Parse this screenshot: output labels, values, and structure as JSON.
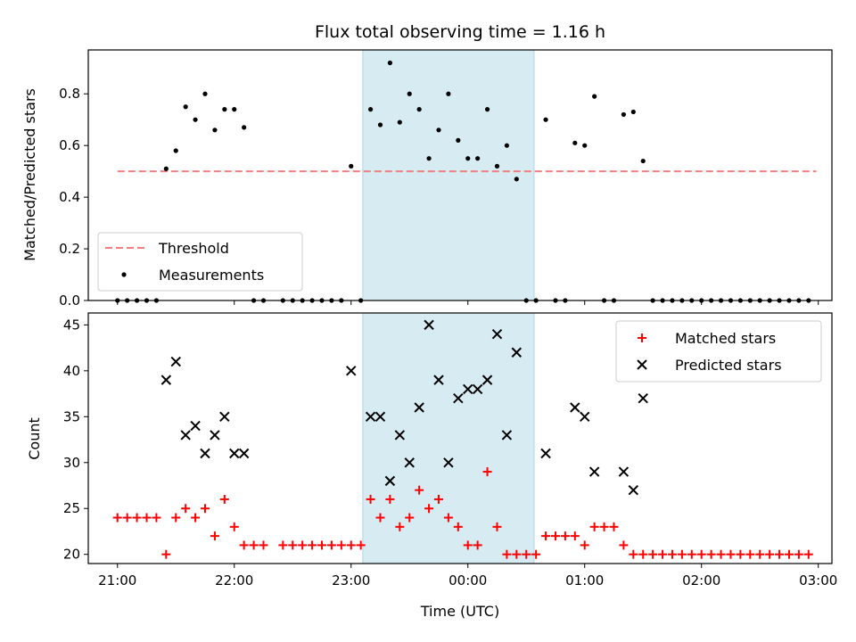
{
  "chart_data": [
    {
      "type": "scatter",
      "title": "Flux total observing time = 1.16 h",
      "ylabel": "Matched/Predicted stars",
      "xlim": [
        "20:45",
        "03:07"
      ],
      "ylim": [
        0,
        0.97
      ],
      "x_tick_labels": [],
      "y_tick_labels": [
        "0.0",
        "0.2",
        "0.4",
        "0.6",
        "0.8"
      ],
      "highlight_band": {
        "x_start": "23:06",
        "x_end": "00:34",
        "color": "#add8e6"
      },
      "legend_position": "lower-left",
      "series": [
        {
          "name": "Threshold",
          "kind": "hline",
          "y": 0.5,
          "x_range": [
            "21:00",
            "02:59"
          ],
          "color": "#f08080",
          "style": "dashed"
        },
        {
          "name": "Measurements",
          "kind": "points",
          "color": "#000000",
          "points": [
            [
              "21:00",
              0
            ],
            [
              "21:05",
              0
            ],
            [
              "21:10",
              0
            ],
            [
              "21:15",
              0
            ],
            [
              "21:20",
              0
            ],
            [
              "21:25",
              0.51
            ],
            [
              "21:30",
              0.58
            ],
            [
              "21:35",
              0.75
            ],
            [
              "21:40",
              0.7
            ],
            [
              "21:45",
              0.8
            ],
            [
              "21:50",
              0.66
            ],
            [
              "21:55",
              0.74
            ],
            [
              "22:00",
              0.74
            ],
            [
              "22:05",
              0.67
            ],
            [
              "22:10",
              0
            ],
            [
              "22:15",
              0
            ],
            [
              "22:25",
              0
            ],
            [
              "22:30",
              0
            ],
            [
              "22:35",
              0
            ],
            [
              "22:40",
              0
            ],
            [
              "22:45",
              0
            ],
            [
              "22:50",
              0
            ],
            [
              "22:55",
              0
            ],
            [
              "23:00",
              0.52
            ],
            [
              "23:05",
              0
            ],
            [
              "23:10",
              0.74
            ],
            [
              "23:15",
              0.68
            ],
            [
              "23:20",
              0.92
            ],
            [
              "23:25",
              0.69
            ],
            [
              "23:30",
              0.8
            ],
            [
              "23:35",
              0.74
            ],
            [
              "23:40",
              0.55
            ],
            [
              "23:45",
              0.66
            ],
            [
              "23:50",
              0.8
            ],
            [
              "23:55",
              0.62
            ],
            [
              "00:00",
              0.55
            ],
            [
              "00:05",
              0.55
            ],
            [
              "00:10",
              0.74
            ],
            [
              "00:15",
              0.52
            ],
            [
              "00:20",
              0.6
            ],
            [
              "00:25",
              0.47
            ],
            [
              "00:30",
              0
            ],
            [
              "00:35",
              0
            ],
            [
              "00:40",
              0.7
            ],
            [
              "00:45",
              0
            ],
            [
              "00:50",
              0
            ],
            [
              "00:55",
              0.61
            ],
            [
              "01:00",
              0.6
            ],
            [
              "01:05",
              0.79
            ],
            [
              "01:10",
              0
            ],
            [
              "01:15",
              0
            ],
            [
              "01:20",
              0.72
            ],
            [
              "01:25",
              0.73
            ],
            [
              "01:30",
              0.54
            ],
            [
              "01:35",
              0
            ],
            [
              "01:40",
              0
            ],
            [
              "01:45",
              0
            ],
            [
              "01:50",
              0
            ],
            [
              "01:55",
              0
            ],
            [
              "02:00",
              0
            ],
            [
              "02:05",
              0
            ],
            [
              "02:10",
              0
            ],
            [
              "02:15",
              0
            ],
            [
              "02:20",
              0
            ],
            [
              "02:25",
              0
            ],
            [
              "02:30",
              0
            ],
            [
              "02:35",
              0
            ],
            [
              "02:40",
              0
            ],
            [
              "02:45",
              0
            ],
            [
              "02:50",
              0
            ],
            [
              "02:55",
              0
            ]
          ]
        }
      ]
    },
    {
      "type": "scatter",
      "xlabel": "Time (UTC)",
      "ylabel": "Count",
      "xlim": [
        "20:45",
        "03:07"
      ],
      "ylim": [
        19,
        46.3
      ],
      "x_tick_labels": [
        "21:00",
        "22:00",
        "23:00",
        "00:00",
        "01:00",
        "02:00",
        "03:00"
      ],
      "y_tick_labels": [
        "20",
        "25",
        "30",
        "35",
        "40",
        "45"
      ],
      "highlight_band": {
        "x_start": "23:06",
        "x_end": "00:34",
        "color": "#add8e6"
      },
      "legend_position": "top-right",
      "series": [
        {
          "name": "Matched stars",
          "marker": "plus",
          "color": "#ff0000",
          "points": [
            [
              "21:00",
              24
            ],
            [
              "21:05",
              24
            ],
            [
              "21:10",
              24
            ],
            [
              "21:15",
              24
            ],
            [
              "21:20",
              24
            ],
            [
              "21:25",
              20
            ],
            [
              "21:30",
              24
            ],
            [
              "21:35",
              25
            ],
            [
              "21:40",
              24
            ],
            [
              "21:45",
              25
            ],
            [
              "21:50",
              22
            ],
            [
              "21:55",
              26
            ],
            [
              "22:00",
              23
            ],
            [
              "22:05",
              21
            ],
            [
              "22:10",
              21
            ],
            [
              "22:15",
              21
            ],
            [
              "22:25",
              21
            ],
            [
              "22:30",
              21
            ],
            [
              "22:35",
              21
            ],
            [
              "22:40",
              21
            ],
            [
              "22:45",
              21
            ],
            [
              "22:50",
              21
            ],
            [
              "22:55",
              21
            ],
            [
              "23:00",
              21
            ],
            [
              "23:05",
              21
            ],
            [
              "23:10",
              26
            ],
            [
              "23:15",
              24
            ],
            [
              "23:20",
              26
            ],
            [
              "23:25",
              23
            ],
            [
              "23:30",
              24
            ],
            [
              "23:35",
              27
            ],
            [
              "23:40",
              25
            ],
            [
              "23:45",
              26
            ],
            [
              "23:50",
              24
            ],
            [
              "23:55",
              23
            ],
            [
              "00:00",
              21
            ],
            [
              "00:05",
              21
            ],
            [
              "00:10",
              29
            ],
            [
              "00:15",
              23
            ],
            [
              "00:20",
              20
            ],
            [
              "00:25",
              20
            ],
            [
              "00:30",
              20
            ],
            [
              "00:35",
              20
            ],
            [
              "00:40",
              22
            ],
            [
              "00:45",
              22
            ],
            [
              "00:50",
              22
            ],
            [
              "00:55",
              22
            ],
            [
              "01:00",
              21
            ],
            [
              "01:05",
              23
            ],
            [
              "01:10",
              23
            ],
            [
              "01:15",
              23
            ],
            [
              "01:20",
              21
            ],
            [
              "01:25",
              20
            ],
            [
              "01:30",
              20
            ],
            [
              "01:35",
              20
            ],
            [
              "01:40",
              20
            ],
            [
              "01:45",
              20
            ],
            [
              "01:50",
              20
            ],
            [
              "01:55",
              20
            ],
            [
              "02:00",
              20
            ],
            [
              "02:05",
              20
            ],
            [
              "02:10",
              20
            ],
            [
              "02:15",
              20
            ],
            [
              "02:20",
              20
            ],
            [
              "02:25",
              20
            ],
            [
              "02:30",
              20
            ],
            [
              "02:35",
              20
            ],
            [
              "02:40",
              20
            ],
            [
              "02:45",
              20
            ],
            [
              "02:50",
              20
            ],
            [
              "02:55",
              20
            ]
          ]
        },
        {
          "name": "Predicted stars",
          "marker": "x",
          "color": "#000000",
          "points": [
            [
              "21:25",
              39
            ],
            [
              "21:30",
              41
            ],
            [
              "21:35",
              33
            ],
            [
              "21:40",
              34
            ],
            [
              "21:45",
              31
            ],
            [
              "21:50",
              33
            ],
            [
              "21:55",
              35
            ],
            [
              "22:00",
              31
            ],
            [
              "22:05",
              31
            ],
            [
              "23:00",
              40
            ],
            [
              "23:10",
              35
            ],
            [
              "23:15",
              35
            ],
            [
              "23:20",
              28
            ],
            [
              "23:25",
              33
            ],
            [
              "23:30",
              30
            ],
            [
              "23:35",
              36
            ],
            [
              "23:40",
              45
            ],
            [
              "23:45",
              39
            ],
            [
              "23:50",
              30
            ],
            [
              "23:55",
              37
            ],
            [
              "00:00",
              38
            ],
            [
              "00:05",
              38
            ],
            [
              "00:10",
              39
            ],
            [
              "00:15",
              44
            ],
            [
              "00:20",
              33
            ],
            [
              "00:25",
              42
            ],
            [
              "00:40",
              31
            ],
            [
              "00:55",
              36
            ],
            [
              "01:00",
              35
            ],
            [
              "01:05",
              29
            ],
            [
              "01:20",
              29
            ],
            [
              "01:25",
              27
            ],
            [
              "01:30",
              37
            ]
          ]
        }
      ]
    }
  ]
}
